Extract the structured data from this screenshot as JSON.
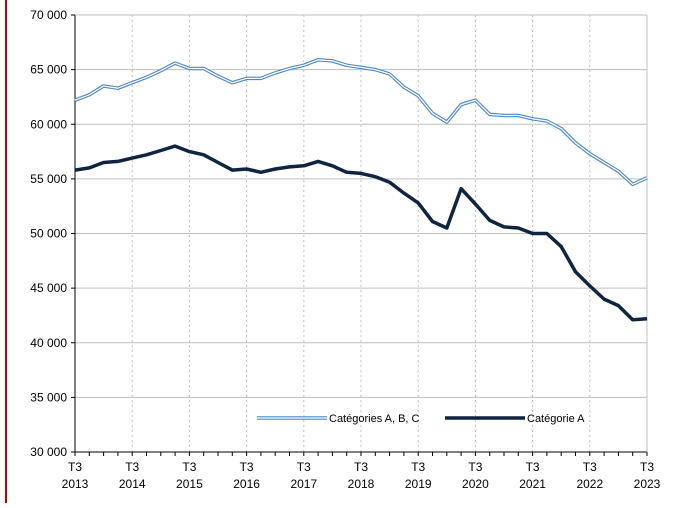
{
  "chart_data": {
    "type": "line",
    "categories": [
      "T3 2013",
      null,
      null,
      null,
      "T3 2014",
      null,
      null,
      null,
      "T3 2015",
      null,
      null,
      null,
      "T3 2016",
      null,
      null,
      null,
      "T3 2017",
      null,
      null,
      null,
      "T3 2018",
      null,
      null,
      null,
      "T3 2019",
      null,
      null,
      null,
      "T3 2020",
      null,
      null,
      null,
      "T3 2021",
      null,
      null,
      null,
      "T3 2022",
      null,
      null,
      null,
      "T3 2023"
    ],
    "series": [
      {
        "name": "Catégories A, B, C",
        "color": "#4a86c8",
        "style": "double",
        "values": [
          62200,
          62700,
          63500,
          63300,
          63800,
          64300,
          64900,
          65600,
          65100,
          65100,
          64400,
          63800,
          64200,
          64200,
          64700,
          65100,
          65400,
          65900,
          65800,
          65400,
          65200,
          65000,
          64600,
          63400,
          62600,
          61000,
          60200,
          61800,
          62200,
          60900,
          60800,
          60800,
          60500,
          60300,
          59600,
          58300,
          57300,
          56500,
          55700,
          54500,
          55100
        ]
      },
      {
        "name": "Catégorie A",
        "color": "#0f2440",
        "style": "solid",
        "values": [
          55800,
          56000,
          56500,
          56600,
          56900,
          57200,
          57600,
          58000,
          57500,
          57200,
          56500,
          55800,
          55900,
          55600,
          55900,
          56100,
          56200,
          56600,
          56200,
          55600,
          55500,
          55200,
          54700,
          53700,
          52800,
          51100,
          50500,
          54100,
          52700,
          51200,
          50600,
          50500,
          50000,
          50000,
          48800,
          46500,
          45200,
          44000,
          43400,
          42100,
          42200
        ]
      }
    ],
    "ylim": [
      30000,
      70000
    ],
    "yticks": [
      {
        "value": 30000,
        "label": "30 000"
      },
      {
        "value": 35000,
        "label": "35 000"
      },
      {
        "value": 40000,
        "label": "40 000"
      },
      {
        "value": 45000,
        "label": "45 000"
      },
      {
        "value": 50000,
        "label": "50 000"
      },
      {
        "value": 55000,
        "label": "55 000"
      },
      {
        "value": 60000,
        "label": "60 000"
      },
      {
        "value": 65000,
        "label": "65 000"
      },
      {
        "value": 70000,
        "label": "70 000"
      }
    ],
    "grid": true,
    "legend": "bottom"
  }
}
